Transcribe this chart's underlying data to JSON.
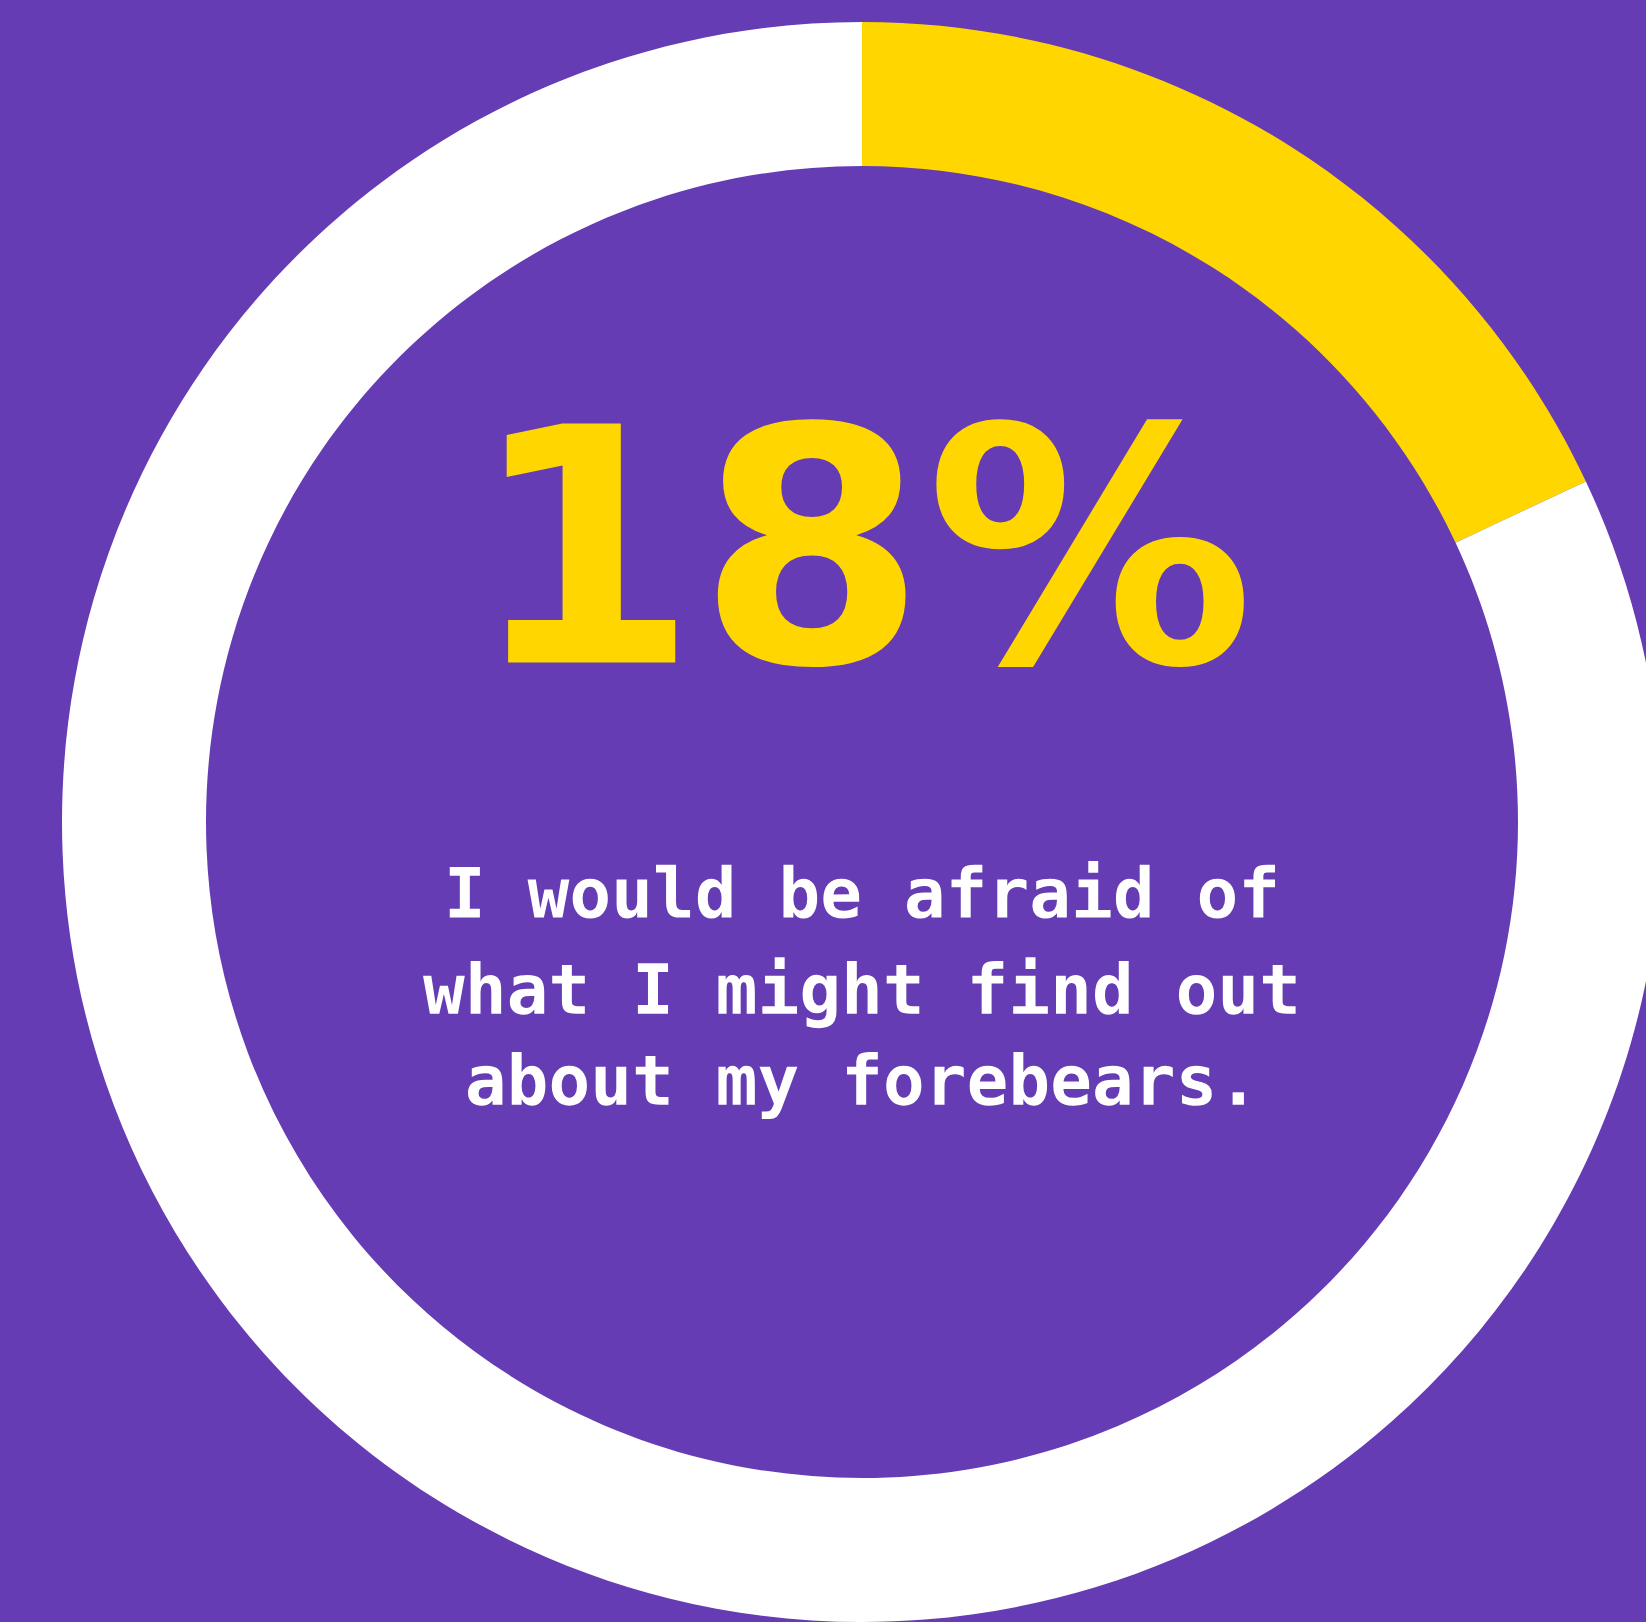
{
  "chart_data": {
    "type": "donut",
    "categories": [
      null,
      null
    ],
    "values": [
      18,
      82
    ],
    "colors": [
      "#ffd600",
      "#ffffff"
    ],
    "value_labels": [
      "18%",
      null
    ],
    "annotations": [
      "I would be afraid of\nwhat I might find out\nabout my forebears."
    ]
  }
}
